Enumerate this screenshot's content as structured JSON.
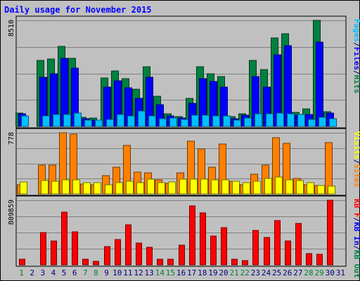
{
  "chart_data": {
    "type": "bar",
    "title": "Daily usage for November 2015",
    "categories": [
      "1",
      "2",
      "3",
      "4",
      "5",
      "6",
      "7",
      "8",
      "9",
      "10",
      "11",
      "12",
      "13",
      "14",
      "15",
      "16",
      "17",
      "18",
      "19",
      "20",
      "21",
      "22",
      "23",
      "24",
      "25",
      "26",
      "27",
      "28",
      "29",
      "30",
      "31"
    ],
    "weekend_days": [
      "1",
      "7",
      "8",
      "14",
      "15",
      "21",
      "22",
      "28",
      "29"
    ],
    "panels": [
      {
        "id": "top",
        "ymax_label": "8510",
        "ymax": 8510,
        "legend": [
          {
            "text": "Pages",
            "color": "#00c0ff"
          },
          {
            "text": "/",
            "color": "#000080"
          },
          {
            "text": "Files",
            "color": "#0000ff"
          },
          {
            "text": "/",
            "color": "#000080"
          },
          {
            "text": "Hits",
            "color": "#008040"
          }
        ],
        "series": [
          {
            "name": "Hits",
            "color": "#008040",
            "values": [
              1070,
              0,
              5300,
              5400,
              6450,
              5450,
              750,
              650,
              3910,
              4470,
              3860,
              2980,
              4800,
              2400,
              990,
              800,
              2280,
              4790,
              4250,
              3980,
              780,
              990,
              5310,
              4570,
              7080,
              7420,
              1120,
              1430,
              8510,
              1200,
              0
            ]
          },
          {
            "name": "Files",
            "color": "#0000ff",
            "values": [
              1000,
              0,
              3920,
              4200,
              5490,
              4690,
              620,
              530,
              3150,
              3690,
              3090,
              2240,
              3920,
              1770,
              860,
              690,
              1860,
              3860,
              3580,
              3150,
              620,
              880,
              3990,
              3150,
              5730,
              6460,
              920,
              930,
              6760,
              1080,
              0
            ]
          },
          {
            "name": "Pages",
            "color": "#00c0ff",
            "values": [
              860,
              0,
              870,
              930,
              980,
              1060,
              480,
              480,
              560,
              970,
              840,
              1260,
              840,
              640,
              690,
              560,
              880,
              890,
              870,
              850,
              520,
              700,
              1030,
              1020,
              1080,
              1040,
              930,
              550,
              720,
              630,
              0
            ]
          }
        ]
      },
      {
        "id": "mid",
        "ymax_label": "778",
        "ymax": 778,
        "legend": [
          {
            "text": "Visits",
            "color": "#ffff00"
          },
          {
            "text": "/",
            "color": "#000080"
          },
          {
            "text": "Sites",
            "color": "#ff8000"
          }
        ],
        "series": [
          {
            "name": "Sites",
            "color": "#ff8000",
            "values": [
              113,
              0,
              366,
              366,
              778,
              760,
              123,
              113,
              236,
              344,
              621,
              280,
              270,
              178,
              133,
              268,
              670,
              571,
              344,
              632,
              165,
              113,
              253,
              366,
              715,
              645,
              199,
              113,
              108,
              650,
              0
            ]
          },
          {
            "name": "Visits",
            "color": "#ffff00",
            "values": [
              150,
              0,
              170,
              165,
              180,
              180,
              145,
              145,
              115,
              145,
              165,
              145,
              185,
              140,
              150,
              190,
              185,
              185,
              175,
              175,
              165,
              145,
              165,
              195,
              215,
              180,
              170,
              145,
              110,
              100,
              0
            ]
          }
        ]
      },
      {
        "id": "bot",
        "ymax_label": "809859",
        "ymax": 809859,
        "legend": [
          {
            "text": "KB F",
            "color": "#ff0000"
          },
          {
            "text": "/",
            "color": "#000080"
          },
          {
            "text": "KB In",
            "color": "#0000ff"
          },
          {
            "text": "/",
            "color": "#000080"
          },
          {
            "text": "KB Out",
            "color": "#008040"
          }
        ],
        "series": [
          {
            "name": "KB F",
            "color": "#ff0000",
            "values": [
              69000,
              0,
              402000,
              298000,
              658000,
              416000,
              69000,
              40000,
              229000,
              321000,
              502000,
              270000,
              216000,
              69000,
              69000,
              247000,
              741000,
              649000,
              362000,
              470000,
              69000,
              53000,
              431000,
              339000,
              557000,
              298000,
              523000,
              138000,
              131000,
              809859,
              0
            ]
          }
        ]
      }
    ]
  }
}
